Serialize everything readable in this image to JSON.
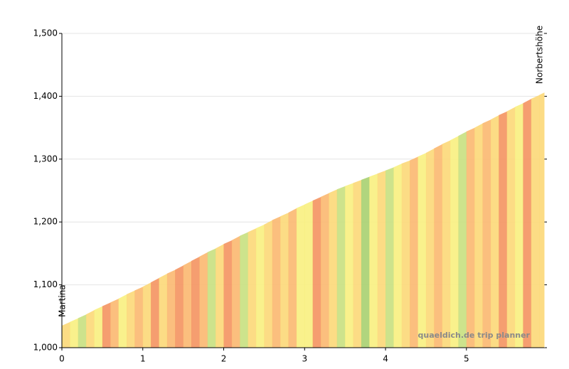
{
  "chart_data": {
    "type": "area",
    "x": [
      0,
      0.1,
      0.2,
      0.3,
      0.4,
      0.5,
      0.6,
      0.7,
      0.8,
      0.9,
      1.0,
      1.1,
      1.2,
      1.3,
      1.4,
      1.5,
      1.6,
      1.7,
      1.8,
      1.9,
      2.0,
      2.1,
      2.2,
      2.3,
      2.4,
      2.5,
      2.6,
      2.7,
      2.8,
      2.9,
      3.0,
      3.1,
      3.2,
      3.3,
      3.4,
      3.5,
      3.6,
      3.7,
      3.8,
      3.9,
      4.0,
      4.1,
      4.2,
      4.3,
      4.4,
      4.5,
      4.6,
      4.7,
      4.8,
      4.9,
      5.0,
      5.1,
      5.2,
      5.3,
      5.4,
      5.5,
      5.6,
      5.7,
      5.8,
      5.9,
      5.96
    ],
    "values": [
      1035,
      1041,
      1047,
      1053,
      1060,
      1066,
      1072,
      1078,
      1085,
      1091,
      1097,
      1104,
      1111,
      1118,
      1124,
      1131,
      1138,
      1145,
      1152,
      1158,
      1165,
      1171,
      1178,
      1184,
      1190,
      1196,
      1203,
      1209,
      1215,
      1222,
      1228,
      1234,
      1240,
      1246,
      1252,
      1257,
      1262,
      1267,
      1272,
      1277,
      1282,
      1287,
      1293,
      1298,
      1304,
      1310,
      1317,
      1324,
      1330,
      1337,
      1344,
      1350,
      1357,
      1363,
      1370,
      1376,
      1383,
      1389,
      1396,
      1402,
      1406
    ],
    "segment_colors": [
      "#fcd878",
      "#f8f080",
      "#c8e080",
      "#fcd878",
      "#f8f080",
      "#f49460",
      "#fbb870",
      "#f8f080",
      "#fcd878",
      "#fbb870",
      "#fcd878",
      "#f49460",
      "#fcd878",
      "#fbb870",
      "#f49460",
      "#fbb870",
      "#f49460",
      "#fbb870",
      "#c8e080",
      "#fcd878",
      "#f49460",
      "#fbb870",
      "#c8e080",
      "#fcd878",
      "#f8f080",
      "#fcd878",
      "#fbb870",
      "#fcd878",
      "#fbb870",
      "#f8f080",
      "#f8f080",
      "#f49460",
      "#fbb870",
      "#fcd878",
      "#c8e080",
      "#f8f080",
      "#fcd878",
      "#a8d070",
      "#f8f080",
      "#fcd878",
      "#c8e080",
      "#f8f080",
      "#fcd878",
      "#fbb870",
      "#f8f080",
      "#fcd878",
      "#fbb870",
      "#fcd878",
      "#f8f080",
      "#c8e080",
      "#fbb870",
      "#fcd878",
      "#fbb870",
      "#fcd878",
      "#f49460",
      "#fcd878",
      "#f8f080",
      "#f49460",
      "#fcd878",
      "#fcd878"
    ],
    "xlim": [
      0,
      5.96
    ],
    "ylim": [
      1000,
      1500
    ],
    "xticks": [
      0,
      1,
      2,
      3,
      4,
      5
    ],
    "yticks": [
      {
        "value": 1000,
        "label": "1,000"
      },
      {
        "value": 1100,
        "label": "1,100"
      },
      {
        "value": 1200,
        "label": "1,200"
      },
      {
        "value": 1300,
        "label": "1,300"
      },
      {
        "value": 1400,
        "label": "1,400"
      },
      {
        "value": 1500,
        "label": "1,500"
      }
    ],
    "grid": true,
    "annotations": [
      {
        "text": "Martina",
        "x": 0
      },
      {
        "text": "Norbertshöhe",
        "x": 5.96
      }
    ],
    "watermark": "quaeldich.de trip planner"
  }
}
